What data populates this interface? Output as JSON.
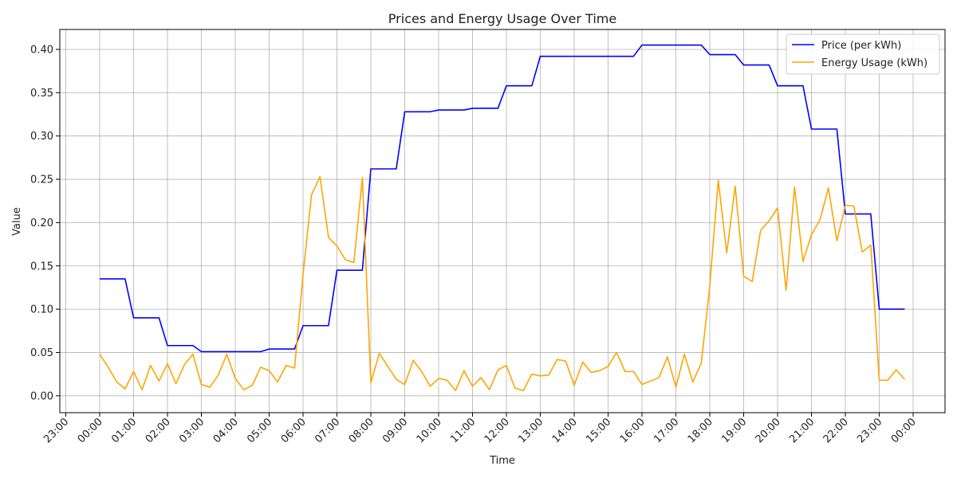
{
  "chart_data": {
    "type": "line",
    "title": "Prices and Energy Usage Over Time",
    "xlabel": "Time",
    "ylabel": "Value",
    "ylim": [
      -0.0195,
      0.423
    ],
    "xlim": [
      "23:00 (prev)",
      "00:00 (next)"
    ],
    "grid": true,
    "legend_position": "top-right",
    "x_tick_labels": [
      "23:00",
      "00:00",
      "01:00",
      "02:00",
      "03:00",
      "04:00",
      "05:00",
      "06:00",
      "07:00",
      "08:00",
      "09:00",
      "10:00",
      "11:00",
      "12:00",
      "13:00",
      "14:00",
      "15:00",
      "16:00",
      "17:00",
      "18:00",
      "19:00",
      "20:00",
      "21:00",
      "22:00",
      "23:00",
      "00:00"
    ],
    "y_ticks": [
      0.0,
      0.05,
      0.1,
      0.15,
      0.2,
      0.25,
      0.3,
      0.35,
      0.4
    ],
    "y_tick_labels": [
      "0.00",
      "0.05",
      "0.10",
      "0.15",
      "0.20",
      "0.25",
      "0.30",
      "0.35",
      "0.40"
    ],
    "x": [
      "00:00",
      "00:15",
      "00:30",
      "00:45",
      "01:00",
      "01:15",
      "01:30",
      "01:45",
      "02:00",
      "02:15",
      "02:30",
      "02:45",
      "03:00",
      "03:15",
      "03:30",
      "03:45",
      "04:00",
      "04:15",
      "04:30",
      "04:45",
      "05:00",
      "05:15",
      "05:30",
      "05:45",
      "06:00",
      "06:15",
      "06:30",
      "06:45",
      "07:00",
      "07:15",
      "07:30",
      "07:45",
      "08:00",
      "08:15",
      "08:30",
      "08:45",
      "09:00",
      "09:15",
      "09:30",
      "09:45",
      "10:00",
      "10:15",
      "10:30",
      "10:45",
      "11:00",
      "11:15",
      "11:30",
      "11:45",
      "12:00",
      "12:15",
      "12:30",
      "12:45",
      "13:00",
      "13:15",
      "13:30",
      "13:45",
      "14:00",
      "14:15",
      "14:30",
      "14:45",
      "15:00",
      "15:15",
      "15:30",
      "15:45",
      "16:00",
      "16:15",
      "16:30",
      "16:45",
      "17:00",
      "17:15",
      "17:30",
      "17:45",
      "18:00",
      "18:15",
      "18:30",
      "18:45",
      "19:00",
      "19:15",
      "19:30",
      "19:45",
      "20:00",
      "20:15",
      "20:30",
      "20:45",
      "21:00",
      "21:15",
      "21:30",
      "21:45",
      "22:00",
      "22:15",
      "22:30",
      "22:45",
      "23:00",
      "23:15",
      "23:30",
      "23:45"
    ],
    "series": [
      {
        "name": "Price (per kWh)",
        "color": "#0000ff",
        "values": [
          0.135,
          0.135,
          0.135,
          0.135,
          0.09,
          0.09,
          0.09,
          0.09,
          0.058,
          0.058,
          0.058,
          0.058,
          0.051,
          0.051,
          0.051,
          0.051,
          0.051,
          0.051,
          0.051,
          0.051,
          0.054,
          0.054,
          0.054,
          0.054,
          0.081,
          0.081,
          0.081,
          0.081,
          0.145,
          0.145,
          0.145,
          0.145,
          0.262,
          0.262,
          0.262,
          0.262,
          0.328,
          0.328,
          0.328,
          0.328,
          0.33,
          0.33,
          0.33,
          0.33,
          0.332,
          0.332,
          0.332,
          0.332,
          0.358,
          0.358,
          0.358,
          0.358,
          0.392,
          0.392,
          0.392,
          0.392,
          0.392,
          0.392,
          0.392,
          0.392,
          0.392,
          0.392,
          0.392,
          0.392,
          0.405,
          0.405,
          0.405,
          0.405,
          0.405,
          0.405,
          0.405,
          0.405,
          0.394,
          0.394,
          0.394,
          0.394,
          0.382,
          0.382,
          0.382,
          0.382,
          0.358,
          0.358,
          0.358,
          0.358,
          0.308,
          0.308,
          0.308,
          0.308,
          0.21,
          0.21,
          0.21,
          0.21,
          0.1,
          0.1,
          0.1,
          0.1
        ]
      },
      {
        "name": "Energy Usage (kWh)",
        "color": "#ffa500",
        "values": [
          0.048,
          0.033,
          0.016,
          0.008,
          0.028,
          0.007,
          0.035,
          0.017,
          0.037,
          0.014,
          0.036,
          0.048,
          0.013,
          0.01,
          0.024,
          0.048,
          0.02,
          0.007,
          0.012,
          0.033,
          0.029,
          0.016,
          0.035,
          0.032,
          0.14,
          0.232,
          0.253,
          0.183,
          0.173,
          0.157,
          0.154,
          0.252,
          0.015,
          0.049,
          0.034,
          0.019,
          0.013,
          0.041,
          0.028,
          0.011,
          0.02,
          0.018,
          0.006,
          0.029,
          0.011,
          0.021,
          0.007,
          0.03,
          0.035,
          0.009,
          0.006,
          0.025,
          0.023,
          0.024,
          0.042,
          0.04,
          0.012,
          0.039,
          0.027,
          0.029,
          0.034,
          0.05,
          0.028,
          0.028,
          0.013,
          0.017,
          0.021,
          0.045,
          0.01,
          0.048,
          0.016,
          0.038,
          0.127,
          0.249,
          0.165,
          0.242,
          0.138,
          0.132,
          0.191,
          0.202,
          0.217,
          0.122,
          0.241,
          0.155,
          0.186,
          0.203,
          0.24,
          0.179,
          0.22,
          0.219,
          0.166,
          0.174,
          0.018,
          0.018,
          0.03,
          0.019
        ]
      }
    ]
  }
}
